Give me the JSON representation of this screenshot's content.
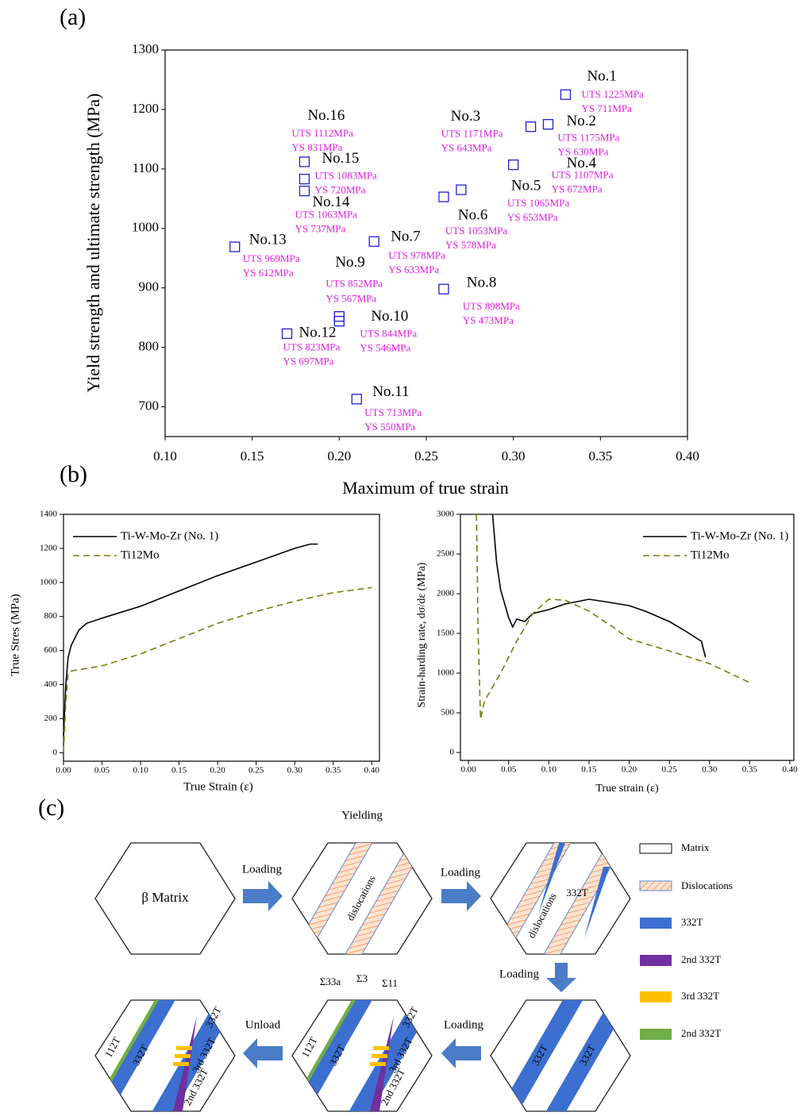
{
  "panel_labels": [
    "(a)",
    "(b)",
    "(c)"
  ],
  "chart_data": [
    {
      "type": "scatter",
      "xlabel": "Maximum of true strain",
      "ylabel": "Yield strength and  ultimate strength (MPa)",
      "xlim": [
        0.1,
        0.4
      ],
      "ylim": [
        650,
        1300
      ],
      "xticks": [
        {
          "value": 0.1,
          "label": "0.10"
        },
        {
          "value": 0.15,
          "label": "0.15"
        },
        {
          "value": 0.2,
          "label": "0.20"
        },
        {
          "value": 0.25,
          "label": "0.25"
        },
        {
          "value": 0.3,
          "label": "0.30"
        },
        {
          "value": 0.35,
          "label": "0.35"
        },
        {
          "value": 0.4,
          "label": "0.40"
        }
      ],
      "yticks": [
        700,
        800,
        900,
        1000,
        1100,
        1200,
        1300
      ],
      "color": "#1f1fd0",
      "label_color": "#e020e0",
      "x": [
        0.33,
        0.32,
        0.31,
        0.3,
        0.27,
        0.26,
        0.22,
        0.26,
        0.2,
        0.2,
        0.21,
        0.17,
        0.14,
        0.18,
        0.18,
        0.18
      ],
      "values": [
        1225,
        1175,
        1171,
        1107,
        1065,
        1053,
        978,
        898,
        852,
        844,
        713,
        823,
        969,
        1063,
        1083,
        1112
      ],
      "point_labels": [
        "No.1",
        "No.2",
        "No.3",
        "No.4",
        "No.5",
        "No.6",
        "No.7",
        "No.8",
        "No.9",
        "No.10",
        "No.11",
        "No.12",
        "No.13",
        "No.14",
        "No.15",
        "No.16"
      ],
      "value_labels": [
        "UTS 1225MPa",
        "UTS 1175MPa",
        "UTS 1171MPa",
        "UTS 1107MPa",
        "UTS 1065MPa",
        "UTS 1053MPa",
        "UTS 978MPa",
        "UTS 898MPa",
        "UTS 852MPa",
        "UTS 844MPa",
        "UTS 713MPa",
        "UTS 823MPa",
        "UTS 969MPa",
        "UTS 1063MPa",
        "UTS 1083MPa",
        "UTS 1112MPa"
      ],
      "ys_labels": [
        "YS 711MPa",
        "YS 630MPa",
        "YS 643MPa",
        "YS 672MPa",
        "YS 653MPa",
        "YS 578MPa",
        "YS 633MPa",
        "YS 473MPa",
        "YS 567MPa",
        "YS 546MPa",
        "YS 550MPa",
        "YS 697MPa",
        "YS 612MPa",
        "YS 737MPa",
        "YS 720MPa",
        "YS 831MPa"
      ]
    },
    {
      "type": "line",
      "xlabel": "True Strain (ε)",
      "ylabel": "True Stres (MPa)",
      "xlim": [
        0,
        0.41
      ],
      "ylim": [
        -50,
        1400
      ],
      "xticks": [
        {
          "value": 0,
          "label": "0.00"
        },
        {
          "value": 0.05,
          "label": "0.05"
        },
        {
          "value": 0.1,
          "label": "0.10"
        },
        {
          "value": 0.15,
          "label": "0.15"
        },
        {
          "value": 0.2,
          "label": "0.20"
        },
        {
          "value": 0.25,
          "label": "0.25"
        },
        {
          "value": 0.3,
          "label": "0.30"
        },
        {
          "value": 0.35,
          "label": "0.35"
        },
        {
          "value": 0.4,
          "label": "0.40"
        }
      ],
      "yticks": [
        0,
        200,
        400,
        600,
        800,
        1000,
        1200,
        1400
      ],
      "legend": "upper left",
      "series": [
        {
          "name": "Ti-W-Mo-Zr (No. 1)",
          "color": "#000000",
          "line_style": "solid",
          "x": [
            0,
            0.003,
            0.006,
            0.01,
            0.02,
            0.03,
            0.05,
            0.1,
            0.15,
            0.2,
            0.25,
            0.3,
            0.32,
            0.33
          ],
          "values": [
            100,
            400,
            560,
            630,
            720,
            760,
            790,
            860,
            950,
            1040,
            1120,
            1200,
            1225,
            1225
          ]
        },
        {
          "name": "Ti12Mo",
          "color": "#7a7a10",
          "line_style": "dashed",
          "x": [
            0,
            0.003,
            0.006,
            0.01,
            0.05,
            0.1,
            0.15,
            0.2,
            0.25,
            0.3,
            0.35,
            0.4
          ],
          "values": [
            0,
            300,
            460,
            480,
            510,
            580,
            670,
            760,
            830,
            890,
            940,
            970
          ]
        }
      ]
    },
    {
      "type": "line",
      "xlabel": "True strain (ε)",
      "ylabel": "Strain-harding rate, dσ/dε (MPa)",
      "xlim": [
        -0.01,
        0.405
      ],
      "ylim": [
        -100,
        3000
      ],
      "xticks": [
        {
          "value": 0,
          "label": "0.00"
        },
        {
          "value": 0.05,
          "label": "0.05"
        },
        {
          "value": 0.1,
          "label": "0.10"
        },
        {
          "value": 0.15,
          "label": "0.15"
        },
        {
          "value": 0.2,
          "label": "0.20"
        },
        {
          "value": 0.25,
          "label": "0.25"
        },
        {
          "value": 0.3,
          "label": "0.30"
        },
        {
          "value": 0.35,
          "label": "0.35"
        },
        {
          "value": 0.4,
          "label": "0.40"
        }
      ],
      "yticks": [
        0,
        500,
        1000,
        1500,
        2000,
        2500,
        3000
      ],
      "legend": "upper right",
      "series": [
        {
          "name": "Ti-W-Mo-Zr (No. 1)",
          "color": "#000000",
          "line_style": "solid",
          "x": [
            0.03,
            0.035,
            0.04,
            0.05,
            0.055,
            0.06,
            0.07,
            0.08,
            0.1,
            0.12,
            0.15,
            0.17,
            0.2,
            0.22,
            0.25,
            0.27,
            0.29,
            0.295
          ],
          "values": [
            3000,
            2400,
            2050,
            1700,
            1580,
            1680,
            1650,
            1750,
            1800,
            1870,
            1930,
            1900,
            1850,
            1780,
            1650,
            1530,
            1400,
            1200
          ]
        },
        {
          "name": "Ti12Mo",
          "color": "#7a7a10",
          "line_style": "dashed",
          "x": [
            0.01,
            0.012,
            0.015,
            0.02,
            0.04,
            0.06,
            0.08,
            0.1,
            0.12,
            0.15,
            0.18,
            0.2,
            0.25,
            0.3,
            0.35
          ],
          "values": [
            3000,
            1500,
            420,
            650,
            1000,
            1400,
            1750,
            1930,
            1920,
            1780,
            1580,
            1430,
            1280,
            1120,
            880
          ]
        }
      ]
    }
  ],
  "diagram": {
    "yielding": "Yielding",
    "beta_matrix": "β Matrix",
    "arrows": [
      "Loading",
      "Loading",
      "Loading",
      "Loading",
      "Unload"
    ],
    "hex2": [
      "dislocations"
    ],
    "hex3": [
      "332T",
      "dislocations"
    ],
    "hex4": [
      "332T",
      "332T"
    ],
    "hex5": [
      "Σ33a",
      "Σ3",
      "Σ11",
      "112T",
      "332T",
      "332T",
      "3rd 332T",
      "2nd 332T"
    ],
    "hex6": [
      "112T",
      "332T",
      "332T",
      "3rd 332T",
      "2nd 332T"
    ],
    "legend": [
      "Matrix",
      "Dislocations",
      "332T",
      "2nd 332T",
      "3rd 332T",
      "2nd 332T"
    ]
  }
}
